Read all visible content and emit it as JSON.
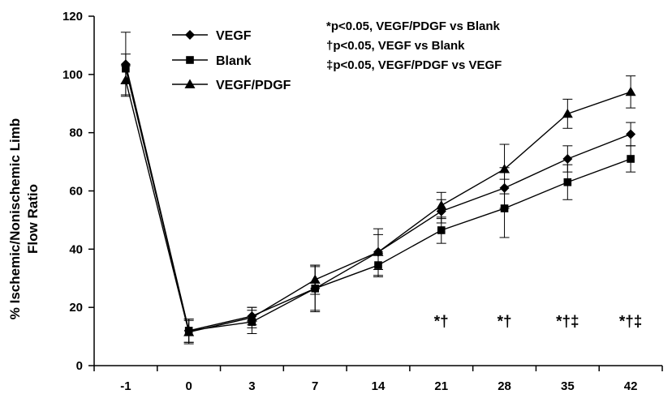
{
  "chart_data": {
    "type": "line",
    "title": "",
    "xlabel": "",
    "ylabel": "% Ischemic/Nonischemic Limb Flow Ratio",
    "ylabel_lines": [
      "% Ischemic/Nonischemic Limb",
      "Flow Ratio"
    ],
    "categories": [
      "-1",
      "0",
      "3",
      "7",
      "14",
      "21",
      "28",
      "35",
      "42"
    ],
    "ylim": [
      0,
      120
    ],
    "yticks": [
      "0",
      "20",
      "40",
      "60",
      "80",
      "100",
      "120"
    ],
    "grid": false,
    "legend_placement": "top-left",
    "series": [
      {
        "name": "VEGF",
        "marker": "diamond",
        "values": [
          103.5,
          12,
          17,
          26.5,
          39,
          53,
          61,
          71,
          79.5
        ],
        "errors": [
          11,
          4,
          3,
          7.5,
          6,
          4,
          7,
          4.5,
          4
        ]
      },
      {
        "name": "Blank",
        "marker": "square",
        "values": [
          102,
          12,
          15,
          26.5,
          34.5,
          46.5,
          54,
          63,
          71
        ],
        "errors": [
          5,
          4,
          4,
          8,
          4,
          4.5,
          10,
          6,
          4.5
        ]
      },
      {
        "name": "VEGF/PDGF",
        "marker": "triangle",
        "values": [
          98,
          11.5,
          16.5,
          29.5,
          39,
          55,
          67.5,
          86.5,
          94
        ],
        "errors": [
          5,
          4,
          3.5,
          5,
          8,
          4.5,
          8.5,
          5,
          5.5
        ]
      }
    ],
    "significance_marks": [
      {
        "category": "21",
        "label": "*†"
      },
      {
        "category": "28",
        "label": "*†"
      },
      {
        "category": "35",
        "label": "*†‡"
      },
      {
        "category": "42",
        "label": "*†‡"
      }
    ],
    "annotations": [
      "*p<0.05, VEGF/PDGF vs Blank",
      "†p<0.05, VEGF vs Blank",
      "‡p<0.05, VEGF/PDGF vs VEGF"
    ]
  }
}
